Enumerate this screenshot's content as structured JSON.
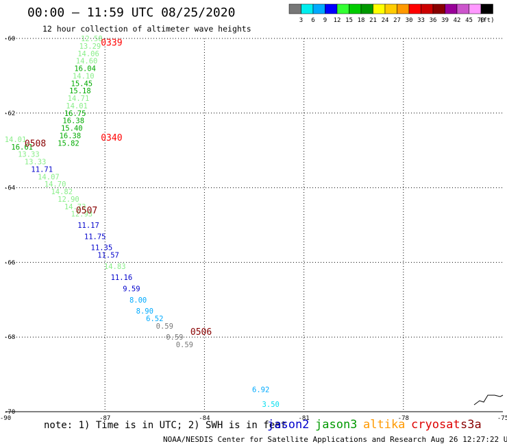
{
  "title": "00:00 – 11:59 UTC 08/25/2020",
  "subtitle": "12 hour collection of altimeter wave heights",
  "note": "note: 1) Time is in UTC; 2) SWH is in feet",
  "credit": "NOAA/NESDIS Center for Satellite Applications and Research   Aug 26 12:27:22 UTC 2020",
  "satellites": [
    {
      "name": "jason2",
      "color": "#0000cc"
    },
    {
      "name": "jason3",
      "color": "#009900"
    },
    {
      "name": "altika",
      "color": "#ff9900"
    },
    {
      "name": "cryosat",
      "color": "#dd0000"
    },
    {
      "name": "s3a",
      "color": "#880000"
    }
  ],
  "colorbar": {
    "unit": "(ft)",
    "colors": [
      "#777777",
      "#00eeee",
      "#00aaff",
      "#0000ff",
      "#33ff33",
      "#00cc00",
      "#009900",
      "#ffff00",
      "#ffcc00",
      "#ff9900",
      "#ff0000",
      "#cc0000",
      "#880000",
      "#990099",
      "#cc55cc",
      "#ff99ff",
      "#000000"
    ],
    "ticks": [
      "3",
      "6",
      "9",
      "12",
      "15",
      "18",
      "21",
      "24",
      "27",
      "30",
      "33",
      "36",
      "39",
      "42",
      "45",
      "70"
    ]
  },
  "chart_data": {
    "type": "scatter",
    "xlabel": "",
    "ylabel": "",
    "xlim": [
      -90,
      -75
    ],
    "ylim": [
      -70,
      -60
    ],
    "x_ticks": [
      -90,
      -87,
      -84,
      -81,
      -78,
      -75
    ],
    "y_ticks": [
      -60,
      -62,
      -64,
      -66,
      -68,
      -70
    ],
    "grid": true,
    "time_labels": [
      {
        "text": "0339",
        "lon": -86.8,
        "lat": -60.1,
        "color": "#ff0000"
      },
      {
        "text": "0340",
        "lon": -86.8,
        "lat": -62.65,
        "color": "#ff0000"
      },
      {
        "text": "0508",
        "lon": -89.1,
        "lat": -62.8,
        "color": "#880000"
      },
      {
        "text": "0507",
        "lon": -87.55,
        "lat": -64.6,
        "color": "#880000"
      },
      {
        "text": "0506",
        "lon": -84.1,
        "lat": -67.85,
        "color": "#880000"
      }
    ],
    "points": [
      {
        "lon": -87.4,
        "lat": -60.0,
        "swh": "12.58",
        "color": "#88ee88"
      },
      {
        "lon": -87.45,
        "lat": -60.2,
        "swh": "13.29",
        "color": "#88ee88"
      },
      {
        "lon": -87.5,
        "lat": -60.4,
        "swh": "14.06",
        "color": "#88ee88"
      },
      {
        "lon": -87.55,
        "lat": -60.6,
        "swh": "14.60",
        "color": "#88ee88"
      },
      {
        "lon": -87.6,
        "lat": -60.8,
        "swh": "16.04",
        "color": "#00aa00"
      },
      {
        "lon": -87.65,
        "lat": -61.0,
        "swh": "14.10",
        "color": "#88ee88"
      },
      {
        "lon": -87.7,
        "lat": -61.2,
        "swh": "15.45",
        "color": "#00aa00"
      },
      {
        "lon": -87.75,
        "lat": -61.4,
        "swh": "15.18",
        "color": "#00aa00"
      },
      {
        "lon": -87.8,
        "lat": -61.6,
        "swh": "14.71",
        "color": "#88ee88"
      },
      {
        "lon": -87.85,
        "lat": -61.8,
        "swh": "14.01",
        "color": "#88ee88"
      },
      {
        "lon": -87.9,
        "lat": -62.0,
        "swh": "16.75",
        "color": "#00aa00"
      },
      {
        "lon": -87.95,
        "lat": -62.2,
        "swh": "16.38",
        "color": "#00aa00"
      },
      {
        "lon": -88.0,
        "lat": -62.4,
        "swh": "15.40",
        "color": "#00aa00"
      },
      {
        "lon": -88.05,
        "lat": -62.6,
        "swh": "16.38",
        "color": "#00aa00"
      },
      {
        "lon": -88.1,
        "lat": -62.8,
        "swh": "15.82",
        "color": "#00aa00"
      },
      {
        "lon": -89.7,
        "lat": -62.7,
        "swh": "14.01",
        "color": "#88ee88"
      },
      {
        "lon": -89.5,
        "lat": -62.9,
        "swh": "16.61",
        "color": "#00aa00"
      },
      {
        "lon": -89.3,
        "lat": -63.1,
        "swh": "13.33",
        "color": "#88ee88"
      },
      {
        "lon": -89.1,
        "lat": -63.3,
        "swh": "13.33",
        "color": "#88ee88"
      },
      {
        "lon": -88.9,
        "lat": -63.5,
        "swh": "11.71",
        "color": "#0000cc"
      },
      {
        "lon": -88.7,
        "lat": -63.7,
        "swh": "14.07",
        "color": "#88ee88"
      },
      {
        "lon": -88.5,
        "lat": -63.9,
        "swh": "14.70",
        "color": "#88ee88"
      },
      {
        "lon": -88.3,
        "lat": -64.1,
        "swh": "14.82",
        "color": "#88ee88"
      },
      {
        "lon": -88.1,
        "lat": -64.3,
        "swh": "12.90",
        "color": "#88ee88"
      },
      {
        "lon": -87.9,
        "lat": -64.5,
        "swh": "14.73",
        "color": "#88ee88"
      },
      {
        "lon": -87.7,
        "lat": -64.7,
        "swh": "12.93",
        "color": "#88ee88"
      },
      {
        "lon": -87.5,
        "lat": -65.0,
        "swh": "11.17",
        "color": "#0000cc"
      },
      {
        "lon": -87.3,
        "lat": -65.3,
        "swh": "11.75",
        "color": "#0000cc"
      },
      {
        "lon": -87.1,
        "lat": -65.6,
        "swh": "11.35",
        "color": "#0000cc"
      },
      {
        "lon": -86.9,
        "lat": -65.8,
        "swh": "11.57",
        "color": "#0000cc"
      },
      {
        "lon": -86.7,
        "lat": -66.1,
        "swh": "14.83",
        "color": "#88ee88"
      },
      {
        "lon": -86.5,
        "lat": -66.4,
        "swh": "11.16",
        "color": "#0000cc"
      },
      {
        "lon": -86.2,
        "lat": -66.7,
        "swh": "9.59",
        "color": "#0000cc"
      },
      {
        "lon": -86.0,
        "lat": -67.0,
        "swh": "8.00",
        "color": "#00aaff"
      },
      {
        "lon": -85.8,
        "lat": -67.3,
        "swh": "8.90",
        "color": "#00aaff"
      },
      {
        "lon": -85.5,
        "lat": -67.5,
        "swh": "6.52",
        "color": "#00aaff"
      },
      {
        "lon": -85.2,
        "lat": -67.7,
        "swh": "0.59",
        "color": "#777777"
      },
      {
        "lon": -84.9,
        "lat": -68.0,
        "swh": "0.59",
        "color": "#777777"
      },
      {
        "lon": -84.6,
        "lat": -68.2,
        "swh": "0.59",
        "color": "#777777"
      },
      {
        "lon": -82.3,
        "lat": -69.4,
        "swh": "6.92",
        "color": "#00aaff"
      },
      {
        "lon": -82.0,
        "lat": -69.8,
        "swh": "3.50",
        "color": "#00ddee"
      }
    ]
  }
}
